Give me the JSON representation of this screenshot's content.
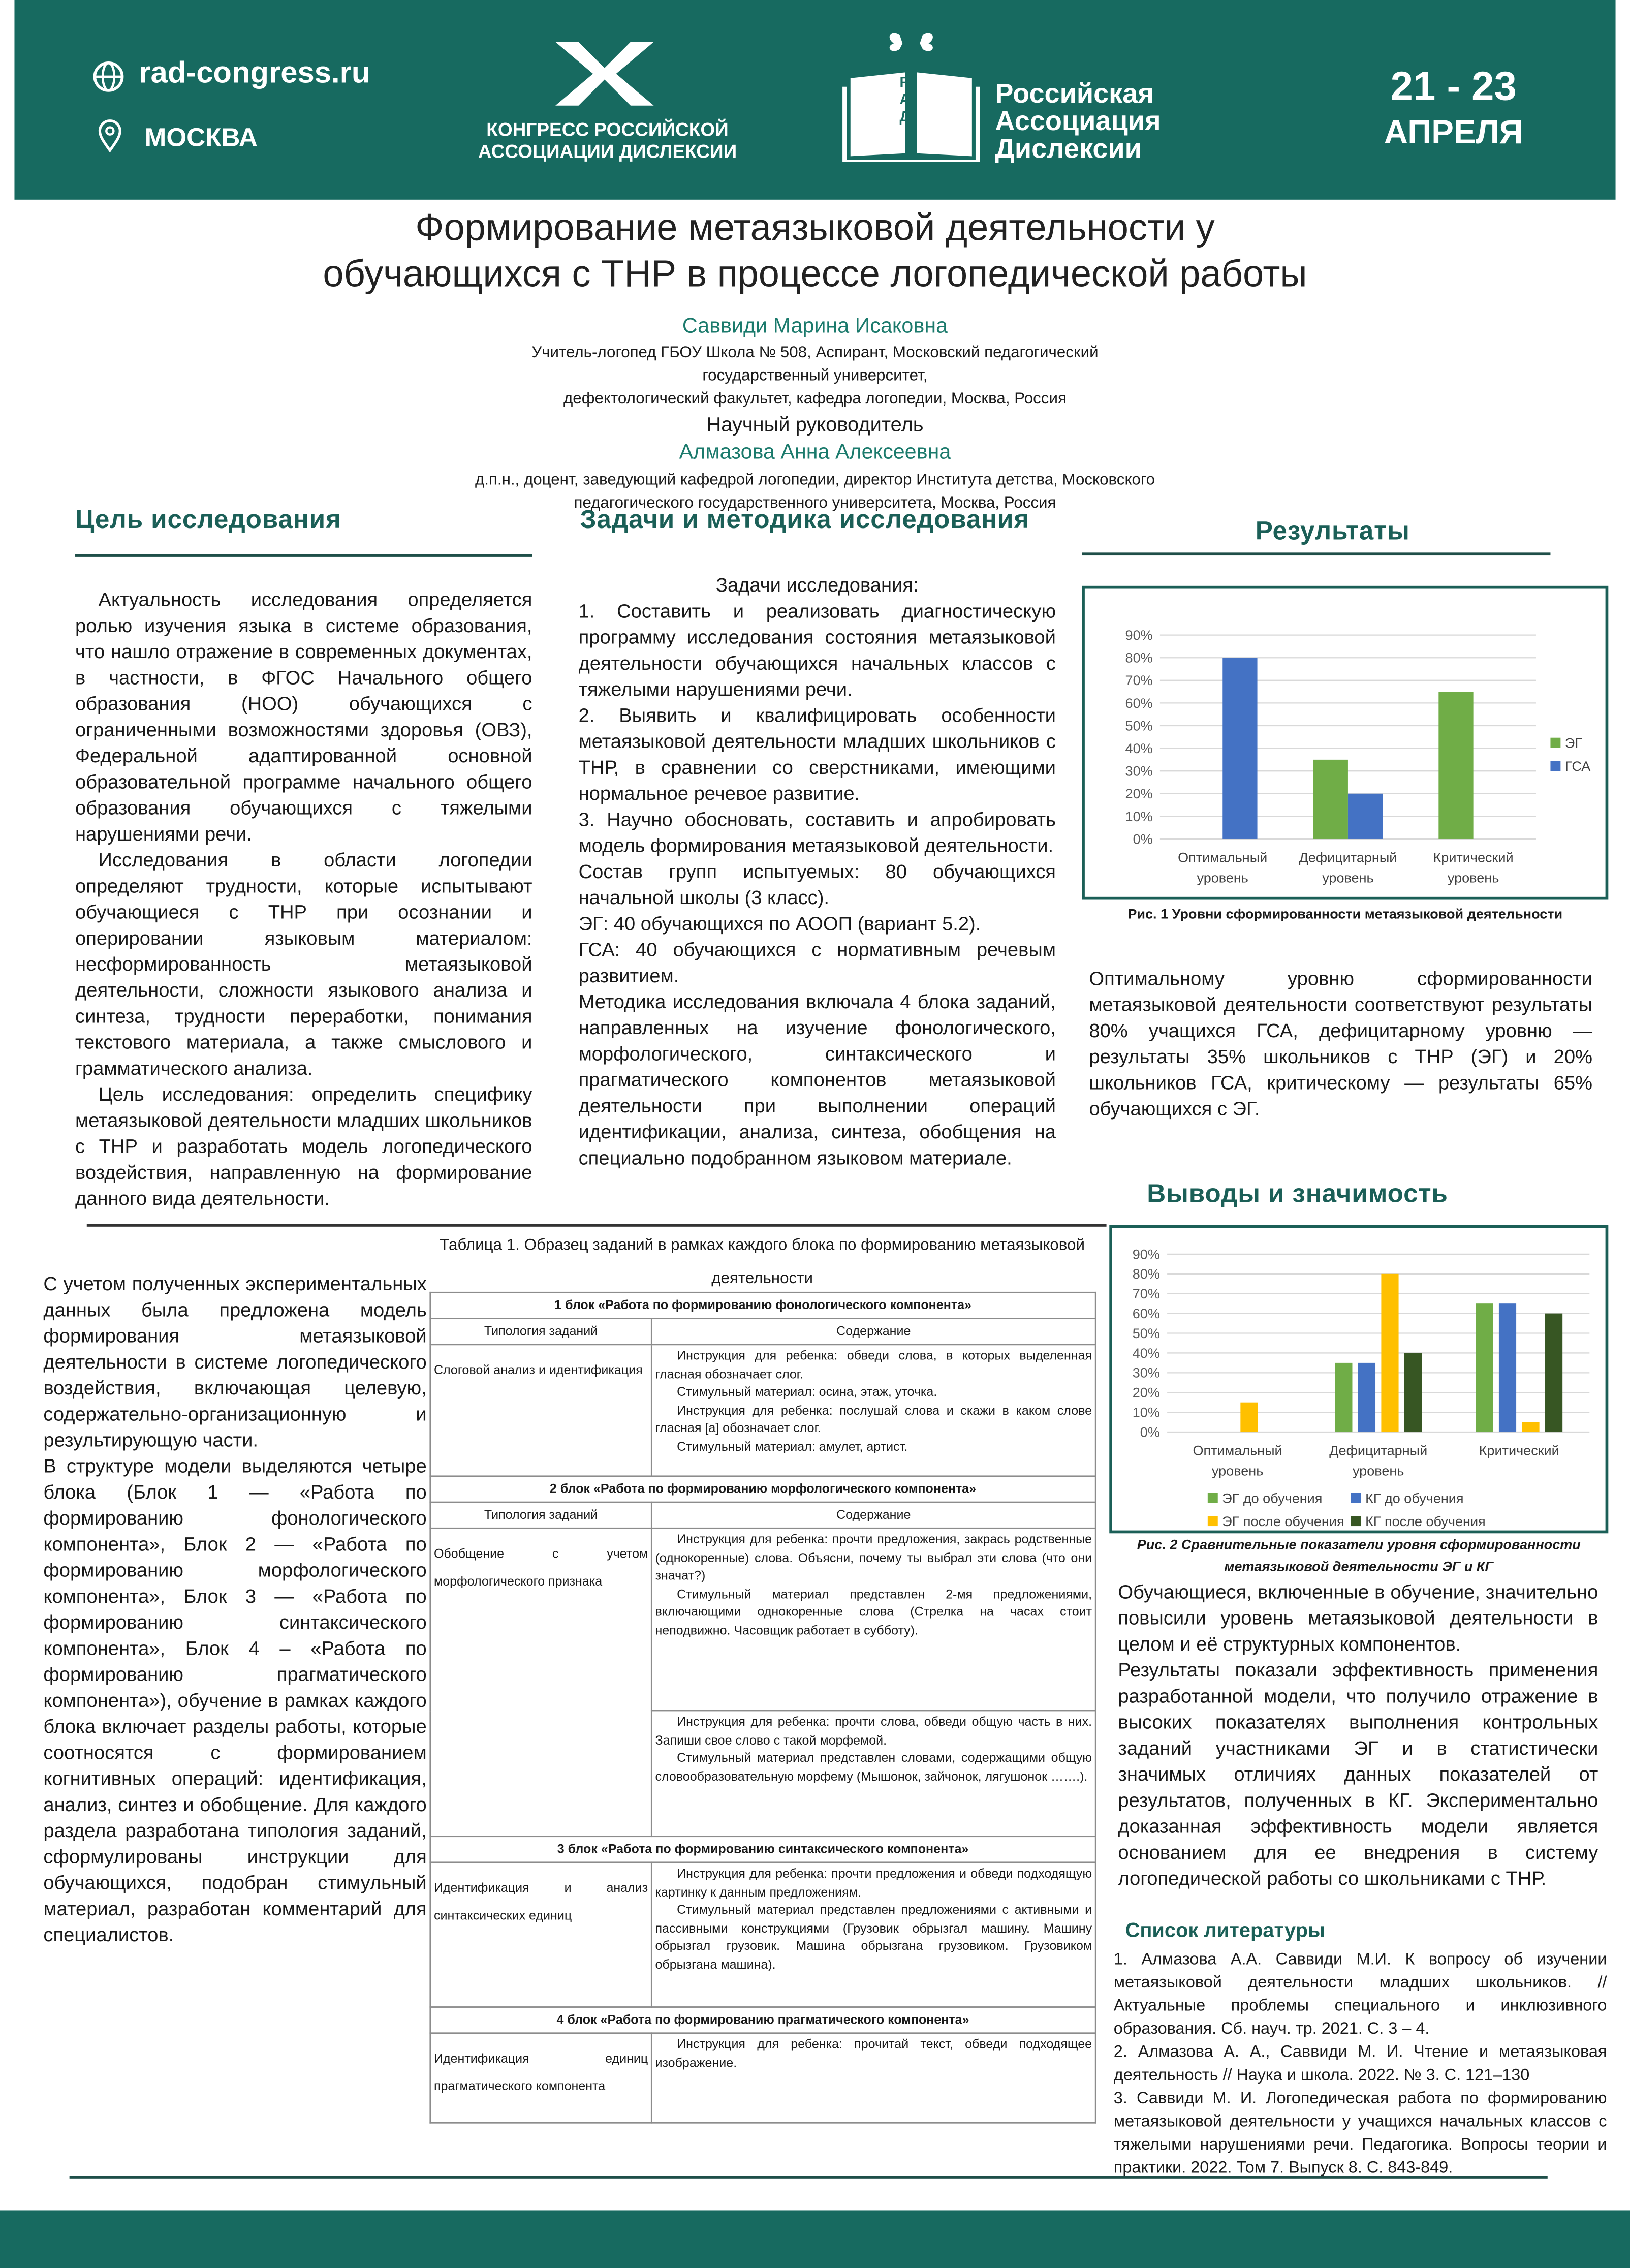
{
  "header": {
    "site": "rad-congress.ru",
    "city": "МОСКВА",
    "congress": [
      "КОНГРЕСС РОССИЙСКОЙ",
      "АССОЦИАЦИИ ДИСЛЕКСИИ"
    ],
    "book_letters": "РАД",
    "organization": [
      "Российская",
      "Ассоциация",
      "Дислексии"
    ],
    "dates": "21 - 23",
    "month": "АПРЕЛЯ"
  },
  "title": [
    "Формирование метаязыковой деятельности у",
    "обучающихся с ТНР в процессе логопедической работы"
  ],
  "author": {
    "name": "Саввиди Марина Исаковна",
    "affiliation": [
      "Учитель-логопед ГБОУ Школа № 508, Аспирант, Московский педагогический",
      "государственный университет,",
      "дефектологический факультет, кафедра логопедии, Москва, Россия"
    ]
  },
  "supervisor": {
    "role": "Научный руководитель",
    "name": "Алмазова Анна Алексеевна",
    "affiliation": [
      "д.п.н., доцент, заведующий кафедрой логопедии, директор Института детства, Московского",
      "педагогического государственного университета, Москва, Россия"
    ]
  },
  "aim": {
    "heading": "Цель исследования",
    "paragraphs": [
      {
        "lead": "Актуальность исследования",
        "text": " определяется ролью изучения языка в системе образования, что нашло отражение в современных документах, в частности, в ФГОС Начального общего образования (НОО) обучающихся с ограниченными возможностями здоровья (ОВЗ), Федеральной адаптированной основной образовательной программе начального общего образования обучающихся с тяжелыми нарушениями речи."
      },
      {
        "text": "Исследования в области логопедии определяют трудности, которые испытывают обучающиеся с ТНР при осознании и оперировании языковым материалом: несформированность метаязыковой деятельности, сложности языкового анализа и синтеза, трудности переработки, понимания текстового материала, а также смыслового и грамматического анализа."
      },
      {
        "lead": "Цель исследования:",
        "text": " определить специфику метаязыковой деятельности младших школьников с ТНР и разработать модель логопедического воздействия, направленную на формирование данного вида деятельности."
      }
    ]
  },
  "tasks": {
    "heading": "Задачи и методика исследования",
    "subheading": "Задачи исследования:",
    "paragraphs": [
      {
        "text": "1. Составить и реализовать диагностическую программу исследования состояния метаязыковой деятельности обучающихся начальных классов с тяжелыми нарушениями речи."
      },
      {
        "text": "2. Выявить и квалифицировать особенности метаязыковой деятельности младших школьников с ТНР, в сравнении со сверстниками, имеющими нормальное речевое развитие."
      },
      {
        "text": "3. Научно обосновать, составить и апробировать модель формирования метаязыковой деятельности."
      },
      {
        "lead": "Состав групп испытуемых",
        "text": ": 80 обучающихся начальной школы (3 класс)."
      },
      {
        "text": "ЭГ: 40 обучающихся по АООП (вариант 5.2)."
      },
      {
        "text": "ГСА: 40 обучающихся с нормативным речевым развитием."
      },
      {
        "lead": "Методика исследования",
        "text": " включала 4 блока заданий, направленных на изучение фонологического, морфологического, синтаксического и прагматического компонентов метаязыковой деятельности при выполнении операций идентификации, анализа, синтеза, обобщения на специально подобранном языковом материале."
      }
    ]
  },
  "results": {
    "heading": "Результаты",
    "text": "Оптимальному уровню сформированности метаязыковой деятельности соответствуют результаты 80% учащихся ГСА, дефицитарному уровню — результаты 35% школьников с ТНР (ЭГ) и 20% школьников ГСА, критическому — результаты 65% обучающихся с ЭГ."
  },
  "model": {
    "paragraphs": [
      {
        "text": "С учетом полученных экспериментальных данных была предложена модель формирования метаязыковой деятельности в системе логопедического воздействия, включающая целевую, содержательно-организационную и результирующую части."
      },
      {
        "text": "В структуре модели выделяются четыре блока (Блок 1 — «Работа по формированию фонологического компонента», Блок 2 — «Работа по формированию морфологического компонента», Блок 3 — «Работа по формированию синтаксического компонента», Блок 4 – «Работа по формированию прагматического компонента»), обучение в рамках каждого блока включает разделы работы, которые соотносятся с формированием когнитивных операций: идентификация, анализ, синтез и обобщение. Для каждого раздела разработана типология заданий, сформулированы инструкции для обучающихся, подобран стимульный материал, разработан комментарий для специалистов."
      }
    ]
  },
  "table": {
    "label": "Таблица 1.",
    "title": "Образец заданий в рамках каждого блока по формированию метаязыковой деятельности",
    "blocks": [
      {
        "heading": "1 блок «Работа по формированию фонологического компонента»",
        "columns": [
          "Типология заданий",
          "Содержание"
        ],
        "rows": [
          {
            "type": "Слоговой анализ и идентификация",
            "cells": [
              [
                "Инструкция для ребенка: обведи слова, в которых выделенная гласная обозначает слог.",
                "Стимульный материал: осина, этаж, уточка.",
                "Инструкция для ребенка: послушай слова и скажи в каком слове гласная [а] обозначает слог.",
                "Стимульный материал: амулет, артист."
              ]
            ]
          }
        ]
      },
      {
        "heading": "2 блок «Работа по формированию морфологического компонента»",
        "columns": [
          "Типология заданий",
          "Содержание"
        ],
        "rows": [
          {
            "type": "Обобщение с учетом морфологического признака",
            "cells": [
              [
                "Инструкция для ребенка: прочти предложения, закрась родственные (однокоренные) слова. Объясни, почему ты выбрал эти слова (что они значат?)",
                "Стимульный материал представлен 2-мя предложениями, включающими однокоренные слова (Стрелка на часах стоит неподвижно. Часовщик работает в субботу)."
              ],
              [
                "Инструкция для ребенка: прочти слова, обведи общую часть в них. Запиши свое слово с такой морфемой.",
                "Стимульный материал представлен словами, содержащими общую словообразовательную морфему (Мышонок, зайчонок, лягушонок …….)."
              ]
            ]
          }
        ]
      },
      {
        "heading": "3 блок «Работа по формированию синтаксического компонента»",
        "rows": [
          {
            "type": "Идентификация и анализ синтаксических единиц",
            "cells": [
              [
                "Инструкция для ребенка: прочти предложения и обведи подходящую картинку к данным предложениям.",
                "Стимульный материал представлен предложениями с активными и пассивными конструкциями (Грузовик обрызгал машину. Машину обрызгал грузовик. Машина обрызгана грузовиком. Грузовиком обрызгана машина)."
              ]
            ]
          }
        ]
      },
      {
        "heading": "4 блок «Работа по формированию прагматического компонента»",
        "rows": [
          {
            "type": "Идентификация единиц прагматического компонента",
            "cells": [
              [
                "Инструкция для ребенка: прочитай текст, обведи подходящее изображение."
              ]
            ]
          }
        ]
      }
    ]
  },
  "conclusions": {
    "heading": "Выводы и значимость",
    "paragraphs": [
      {
        "text": "Обучающиеся, включенные в обучение, значительно повысили уровень метаязыковой деятельности в целом и её структурных компонентов."
      },
      {
        "text": "Результаты показали эффективность применения разработанной модели, что получило отражение в высоких показателях выполнения контрольных заданий участниками ЭГ и в статистически значимых отличиях данных показателей от результатов, полученных в КГ. Экспериментально доказанная эффективность модели является основанием для ее внедрения в систему логопедической работы со школьниками с ТНР."
      }
    ]
  },
  "references": {
    "heading": "Список литературы",
    "items": [
      "1. Алмазова А.А. Саввиди М.И. К вопросу об изучении метаязыковой деятельности младших школьников. // Актуальные проблемы специального и инклюзивного образования. Сб. науч. тр. 2021. С. 3 – 4.",
      "2. Алмазова А. А., Саввиди М. И. Чтение и метаязыковая деятельность // Наука и школа. 2022. № 3. С. 121–130",
      "3. Саввиди М. И. Логопедическая работа по формированию метаязыковой деятельности у учащихся начальных классов с тяжелыми нарушениями речи. Педагогика. Вопросы теории и практики. 2022. Том 7. Выпуск 8. С. 843-849."
    ]
  },
  "chart_data": [
    {
      "type": "bar",
      "caption": "Рис. 1 Уровни сформированности метаязыковой деятельности",
      "categories": [
        "Оптимальный уровень",
        "Дефицитарный уровень",
        "Критический уровень"
      ],
      "series": [
        {
          "name": "ЭГ",
          "color": "#70ad47",
          "values": [
            0,
            35,
            65
          ]
        },
        {
          "name": "ГСА",
          "color": "#4472c4",
          "values": [
            80,
            20,
            0
          ]
        }
      ],
      "ylim": [
        0,
        90
      ],
      "yticks": [
        {
          "value": 0,
          "label": "0%"
        },
        {
          "value": 10,
          "label": "10%"
        },
        {
          "value": 20,
          "label": "20%"
        },
        {
          "value": 30,
          "label": "30%"
        },
        {
          "value": 40,
          "label": "40%"
        },
        {
          "value": 50,
          "label": "50%"
        },
        {
          "value": 60,
          "label": "60%"
        },
        {
          "value": 70,
          "label": "70%"
        },
        {
          "value": 80,
          "label": "80%"
        },
        {
          "value": 90,
          "label": "90%"
        }
      ],
      "grid": true,
      "legend": "right"
    },
    {
      "type": "bar",
      "caption": "Рис. 2 Сравнительные показатели уровня сформированности метаязыковой деятельности ЭГ и КГ",
      "categories": [
        "Оптимальный уровень",
        "Дефицитарный уровень",
        "Критический"
      ],
      "series": [
        {
          "name": "ЭГ до обучения",
          "color": "#70ad47",
          "values": [
            0,
            35,
            65
          ]
        },
        {
          "name": "КГ до обучения",
          "color": "#4472c4",
          "values": [
            0,
            35,
            65
          ]
        },
        {
          "name": "ЭГ после обучения",
          "color": "#ffc000",
          "values": [
            15,
            80,
            5
          ]
        },
        {
          "name": "КГ после обучения",
          "color": "#375623",
          "values": [
            0,
            40,
            60
          ]
        }
      ],
      "ylim": [
        0,
        90
      ],
      "yticks": [
        {
          "value": 0,
          "label": "0%"
        },
        {
          "value": 10,
          "label": "10%"
        },
        {
          "value": 20,
          "label": "20%"
        },
        {
          "value": 30,
          "label": "30%"
        },
        {
          "value": 40,
          "label": "40%"
        },
        {
          "value": 50,
          "label": "50%"
        },
        {
          "value": 60,
          "label": "60%"
        },
        {
          "value": 70,
          "label": "70%"
        },
        {
          "value": 80,
          "label": "80%"
        },
        {
          "value": 90,
          "label": "90%"
        }
      ],
      "grid": true,
      "legend": "bottom"
    }
  ]
}
